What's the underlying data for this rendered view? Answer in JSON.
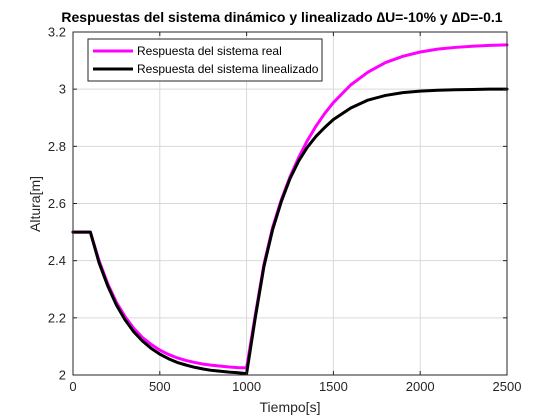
{
  "chart_data": {
    "type": "line",
    "title": "Respuestas del sistema dinámico y linealizado ∆U=-10% y ∆D=-0.1",
    "xlabel": "Tiempo[s]",
    "ylabel": "Altura[m]",
    "xlim": [
      0,
      2500
    ],
    "ylim": [
      2,
      3.2
    ],
    "xticks": [
      0,
      500,
      1000,
      1500,
      2000,
      2500
    ],
    "yticks": [
      2,
      2.2,
      2.4,
      2.6,
      2.8,
      3,
      3.2
    ],
    "grid": true,
    "legend_position": "top-left",
    "series": [
      {
        "name": "Respuesta del sistema real",
        "color": "#ff00ff",
        "x": [
          0,
          100,
          150,
          200,
          250,
          300,
          350,
          400,
          450,
          500,
          550,
          600,
          650,
          700,
          750,
          800,
          850,
          900,
          950,
          1000,
          1050,
          1100,
          1150,
          1200,
          1250,
          1300,
          1350,
          1400,
          1450,
          1500,
          1600,
          1700,
          1800,
          1900,
          2000,
          2100,
          2200,
          2300,
          2400,
          2500
        ],
        "y": [
          2.5,
          2.5,
          2.4,
          2.319,
          2.254,
          2.204,
          2.163,
          2.131,
          2.107,
          2.087,
          2.072,
          2.06,
          2.051,
          2.044,
          2.038,
          2.034,
          2.031,
          2.028,
          2.026,
          2.025,
          2.21,
          2.388,
          2.516,
          2.613,
          2.693,
          2.761,
          2.82,
          2.871,
          2.915,
          2.953,
          3.015,
          3.06,
          3.093,
          3.115,
          3.13,
          3.14,
          3.146,
          3.15,
          3.153,
          3.155
        ]
      },
      {
        "name": "Respuesta del sistema linealizado",
        "color": "#000000",
        "x": [
          0,
          100,
          150,
          200,
          250,
          300,
          350,
          400,
          450,
          500,
          550,
          600,
          650,
          700,
          750,
          800,
          850,
          900,
          950,
          1000,
          1050,
          1100,
          1150,
          1200,
          1250,
          1300,
          1350,
          1400,
          1450,
          1500,
          1600,
          1700,
          1800,
          1900,
          2000,
          2100,
          2200,
          2300,
          2400,
          2500
        ],
        "y": [
          2.5,
          2.5,
          2.393,
          2.312,
          2.245,
          2.193,
          2.151,
          2.119,
          2.093,
          2.073,
          2.057,
          2.044,
          2.035,
          2.027,
          2.021,
          2.016,
          2.013,
          2.01,
          2.008,
          2.005,
          2.2,
          2.38,
          2.509,
          2.607,
          2.687,
          2.749,
          2.797,
          2.835,
          2.866,
          2.894,
          2.934,
          2.962,
          2.978,
          2.988,
          2.993,
          2.996,
          2.998,
          2.999,
          3.0,
          3.0
        ]
      }
    ]
  }
}
